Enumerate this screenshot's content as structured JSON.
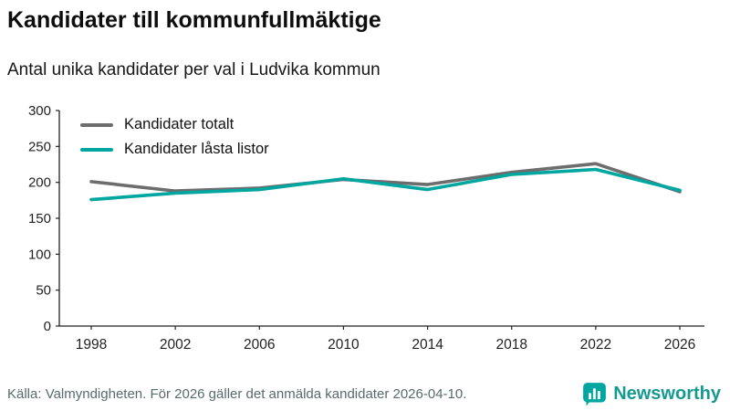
{
  "header": {
    "title": "Kandidater till kommunfullmäktige",
    "subtitle": "Antal unika kandidater per val i Ludvika kommun"
  },
  "chart_data": {
    "type": "line",
    "x": [
      1998,
      2002,
      2006,
      2010,
      2014,
      2018,
      2022,
      2026
    ],
    "series": [
      {
        "name": "Kandidater totalt",
        "color": "#6d6d6d",
        "values": [
          201,
          188,
          192,
          204,
          197,
          214,
          226,
          187
        ]
      },
      {
        "name": "Kandidater låsta listor",
        "color": "#00a6a0",
        "values": [
          176,
          185,
          190,
          205,
          190,
          211,
          218,
          189
        ]
      }
    ],
    "ylim": [
      0,
      300
    ],
    "yticks": [
      0,
      50,
      100,
      150,
      200,
      250,
      300
    ],
    "grid": false,
    "legend_position": "top-left",
    "axis_color": "#222222"
  },
  "footer": {
    "source": "Källa: Valmyndigheten. För 2026 gäller det anmälda kandidater 2026-04-10.",
    "brand": "Newsworthy",
    "brand_color": "#159a91",
    "icon_color": "#00a6a0"
  }
}
